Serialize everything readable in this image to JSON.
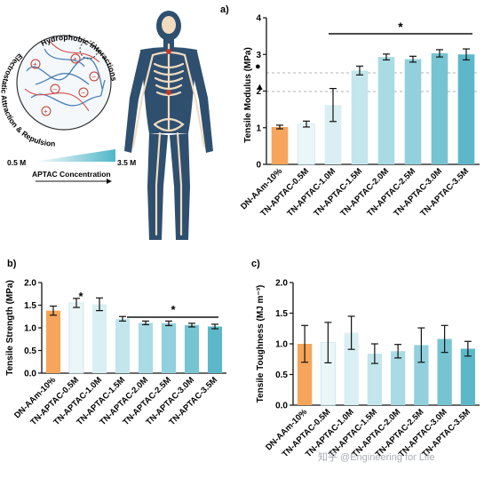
{
  "inset": {
    "label_hydrophobic": "Hydrophobic Interactions",
    "label_electrostatic": "Electrostatic Attraction & Repulsion",
    "conc_low": "0.5 M",
    "conc_high": "3.5 M",
    "conc_axis": "APTAC Concentration"
  },
  "watermark": "知乎 @Engineering for Life",
  "colors": {
    "dn": "#f6a55a",
    "tn": [
      "#eaf6f8",
      "#d9eff3",
      "#c2e6ec",
      "#a9dbe4",
      "#91d0dc",
      "#76c4d2",
      "#5cb8c9"
    ],
    "skin": "#f1dcc0",
    "bone": "#2f4f6f",
    "joint": "#c0392b"
  },
  "chart_data": [
    {
      "panel": "a)",
      "type": "bar",
      "categories": [
        "DN-AAm-10%",
        "TN-APTAC-0.5M",
        "TN-APTAC-1.0M",
        "TN-APTAC-1.5M",
        "TN-APTAC-2.0M",
        "TN-APTAC-2.5M",
        "TN-APTAC-3.0M",
        "TN-APTAC-3.5M"
      ],
      "values": [
        1.02,
        1.1,
        1.62,
        2.56,
        2.93,
        2.87,
        3.03,
        3.0
      ],
      "errors": [
        0.05,
        0.08,
        0.45,
        0.12,
        0.08,
        0.08,
        0.1,
        0.15
      ],
      "ylabel": "Tensile Modulus (MPa)",
      "ylim": [
        0,
        4
      ],
      "yticks": [
        "0",
        "1",
        "2",
        "3",
        "4"
      ],
      "significance": "*",
      "reference_lines": [
        2.55,
        2.0
      ],
      "reference_markers": [
        "●",
        "▲"
      ]
    },
    {
      "panel": "b)",
      "type": "bar",
      "categories": [
        "DN-AAm-10%",
        "TN-APTAC-0.5M",
        "TN-APTAC-1.0M",
        "TN-APTAC-1.5M",
        "TN-APTAC-2.0M",
        "TN-APTAC-2.5M",
        "TN-APTAC-3.0M",
        "TN-APTAC-3.5M"
      ],
      "values": [
        1.38,
        1.55,
        1.52,
        1.2,
        1.11,
        1.1,
        1.06,
        1.03
      ],
      "errors": [
        0.1,
        0.1,
        0.14,
        0.05,
        0.04,
        0.05,
        0.04,
        0.05
      ],
      "ylabel": "Tensile Strength (MPa)",
      "ylim": [
        0,
        2
      ],
      "yticks": [
        "0.0",
        "0.5",
        "1.0",
        "1.5",
        "2.0"
      ],
      "significance": [
        "*",
        "*"
      ]
    },
    {
      "panel": "c)",
      "type": "bar",
      "categories": [
        "DN-AAm-10%",
        "TN-APTAC-0.5M",
        "TN-APTAC-1.0M",
        "TN-APTAC-1.5M",
        "TN-APTAC-2.0M",
        "TN-APTAC-2.5M",
        "TN-APTAC-3.0M",
        "TN-APTAC-3.5M"
      ],
      "values": [
        1.0,
        1.02,
        1.18,
        0.84,
        0.88,
        0.98,
        1.08,
        0.92
      ],
      "errors": [
        0.3,
        0.33,
        0.27,
        0.16,
        0.11,
        0.28,
        0.22,
        0.12
      ],
      "ylabel": "Tensile Toughness (MJ m⁻³)",
      "ylim": [
        0,
        2
      ],
      "yticks": [
        "0.0",
        "0.5",
        "1.0",
        "1.5",
        "2.0"
      ]
    }
  ]
}
